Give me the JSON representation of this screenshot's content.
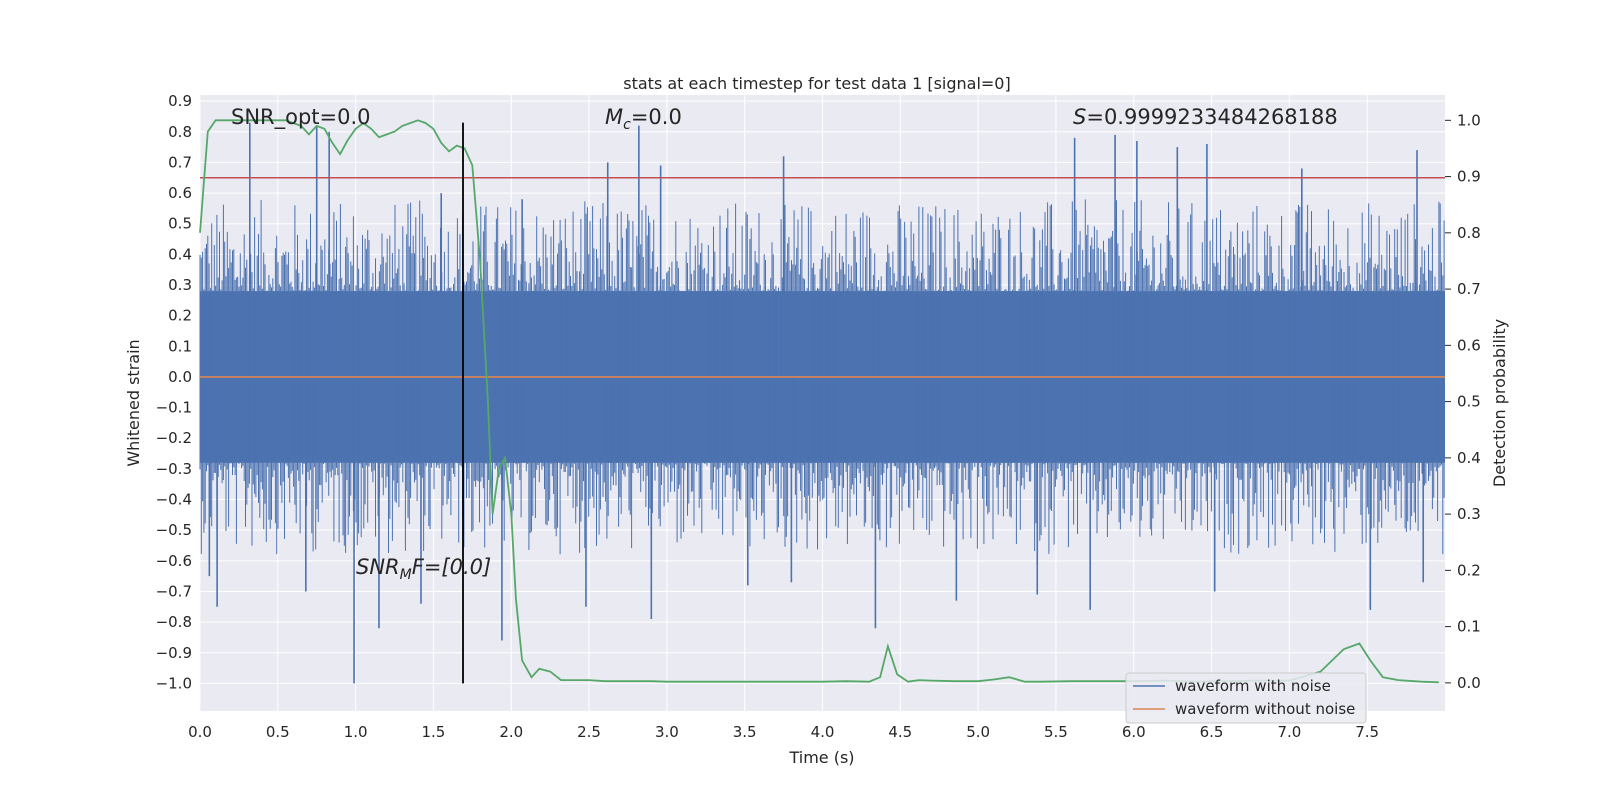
{
  "chart_data": {
    "type": "line",
    "title": "stats at each timestep for test data 1 [signal=0]",
    "xlabel": "Time (s)",
    "ylabel_left": "Whitened strain",
    "ylabel_right": "Detection probability",
    "xlim": [
      0.0,
      8.0
    ],
    "ylim_left": [
      -1.09,
      0.92
    ],
    "ylim_right": [
      -0.05,
      1.045
    ],
    "x_ticks": [
      "0.0",
      "0.5",
      "1.0",
      "1.5",
      "2.0",
      "2.5",
      "3.0",
      "3.5",
      "4.0",
      "4.5",
      "5.0",
      "5.5",
      "6.0",
      "6.5",
      "7.0",
      "7.5"
    ],
    "y_ticks_left": [
      "0.9",
      "0.8",
      "0.7",
      "0.6",
      "0.5",
      "0.4",
      "0.3",
      "0.2",
      "0.1",
      "0.0",
      "−0.1",
      "−0.2",
      "−0.3",
      "−0.4",
      "−0.5",
      "−0.6",
      "−0.7",
      "−0.8",
      "−0.9",
      "−1.0"
    ],
    "y_ticks_right": [
      "0.0",
      "0.1",
      "0.2",
      "0.3",
      "0.4",
      "0.5",
      "0.6",
      "0.7",
      "0.8",
      "0.9",
      "1.0"
    ],
    "grid": true,
    "legend_position": "lower-right",
    "colors": {
      "plot_background": "#eaeaf2",
      "grid": "#ffffff",
      "noisy_waveform": "#4c72b0",
      "clean_waveform": "#dd8452",
      "detection_probability": "#55a868",
      "threshold": "#c44e52",
      "marker": "#000000"
    },
    "annotations": {
      "snr_opt": "SNR_opt=0.0",
      "mc_symbol": "M",
      "mc_sub": "c",
      "mc_value": "=0.0",
      "s_symbol": "S",
      "s_value": "=0.9999233484268188",
      "snr_mf_symbol": "SNR",
      "snr_mf_sub": "M",
      "snr_mf_tail": "F=[0.0]"
    },
    "series": [
      {
        "name": "waveform with noise",
        "kind": "noise-dense",
        "axis": "left",
        "x_range": [
          0.0,
          8.0
        ],
        "band_typical": [
          -0.28,
          0.28
        ],
        "spikes": [
          {
            "x": 0.06,
            "y": -0.65
          },
          {
            "x": 0.11,
            "y": -0.75
          },
          {
            "x": 0.32,
            "y": 0.83
          },
          {
            "x": 0.68,
            "y": -0.7
          },
          {
            "x": 0.75,
            "y": 0.82
          },
          {
            "x": 0.83,
            "y": 0.8
          },
          {
            "x": 0.99,
            "y": -1.0
          },
          {
            "x": 1.15,
            "y": -0.82
          },
          {
            "x": 1.42,
            "y": -0.74
          },
          {
            "x": 1.55,
            "y": 0.6
          },
          {
            "x": 1.94,
            "y": -0.86
          },
          {
            "x": 2.07,
            "y": 0.58
          },
          {
            "x": 2.48,
            "y": -0.75
          },
          {
            "x": 2.62,
            "y": 0.7
          },
          {
            "x": 2.82,
            "y": 0.82
          },
          {
            "x": 2.9,
            "y": -0.79
          },
          {
            "x": 2.96,
            "y": 0.69
          },
          {
            "x": 3.52,
            "y": -0.68
          },
          {
            "x": 3.75,
            "y": 0.72
          },
          {
            "x": 3.8,
            "y": -0.67
          },
          {
            "x": 4.34,
            "y": -0.82
          },
          {
            "x": 4.86,
            "y": -0.73
          },
          {
            "x": 5.38,
            "y": -0.71
          },
          {
            "x": 5.62,
            "y": 0.78
          },
          {
            "x": 5.72,
            "y": -0.76
          },
          {
            "x": 5.88,
            "y": 0.79
          },
          {
            "x": 6.02,
            "y": 0.77
          },
          {
            "x": 6.28,
            "y": 0.75
          },
          {
            "x": 6.47,
            "y": 0.76
          },
          {
            "x": 6.52,
            "y": -0.7
          },
          {
            "x": 7.08,
            "y": 0.68
          },
          {
            "x": 7.52,
            "y": -0.76
          },
          {
            "x": 7.82,
            "y": 0.74
          },
          {
            "x": 7.86,
            "y": -0.67
          }
        ]
      },
      {
        "name": "waveform without noise",
        "axis": "left",
        "x": [
          0.0,
          8.0
        ],
        "y": [
          0.0,
          0.0
        ]
      },
      {
        "axis": "right",
        "x": [
          0.0,
          0.05,
          0.1,
          0.15,
          0.2,
          0.25,
          0.3,
          0.35,
          0.4,
          0.45,
          0.5,
          0.55,
          0.6,
          0.65,
          0.7,
          0.75,
          0.8,
          0.85,
          0.9,
          0.95,
          1.0,
          1.05,
          1.1,
          1.15,
          1.2,
          1.25,
          1.3,
          1.35,
          1.4,
          1.45,
          1.5,
          1.55,
          1.6,
          1.65,
          1.7,
          1.75,
          1.8,
          1.85,
          1.88,
          1.92,
          1.96,
          2.0,
          2.03,
          2.07,
          2.13,
          2.18,
          2.25,
          2.32,
          2.4,
          2.5,
          2.6,
          2.7,
          2.8,
          2.9,
          3.0,
          3.2,
          3.4,
          3.6,
          3.8,
          4.0,
          4.15,
          4.3,
          4.37,
          4.42,
          4.48,
          4.55,
          4.62,
          4.7,
          4.85,
          5.0,
          5.1,
          5.2,
          5.3,
          5.4,
          5.6,
          5.8,
          6.0,
          6.2,
          6.4,
          6.6,
          6.8,
          7.0,
          7.2,
          7.35,
          7.45,
          7.52,
          7.6,
          7.7,
          7.85,
          7.96
        ],
        "y": [
          0.8,
          0.98,
          1.0,
          1.0,
          1.0,
          1.0,
          1.0,
          1.0,
          1.0,
          1.0,
          1.0,
          1.0,
          0.995,
          0.99,
          0.975,
          0.99,
          0.985,
          0.96,
          0.94,
          0.965,
          0.985,
          0.995,
          0.985,
          0.97,
          0.975,
          0.98,
          0.99,
          0.995,
          1.0,
          0.995,
          0.985,
          0.96,
          0.945,
          0.955,
          0.95,
          0.92,
          0.75,
          0.5,
          0.3,
          0.38,
          0.4,
          0.3,
          0.15,
          0.04,
          0.01,
          0.025,
          0.02,
          0.005,
          0.005,
          0.005,
          0.003,
          0.003,
          0.003,
          0.003,
          0.002,
          0.002,
          0.002,
          0.002,
          0.002,
          0.002,
          0.003,
          0.002,
          0.01,
          0.065,
          0.015,
          0.002,
          0.005,
          0.004,
          0.003,
          0.003,
          0.006,
          0.01,
          0.002,
          0.002,
          0.003,
          0.003,
          0.003,
          0.004,
          0.002,
          0.003,
          0.004,
          0.004,
          0.02,
          0.06,
          0.07,
          0.04,
          0.01,
          0.005,
          0.002,
          0.001
        ]
      }
    ],
    "threshold_line": {
      "axis": "left",
      "y": 0.65
    },
    "marker_line": {
      "axis": "left",
      "x": 1.69,
      "y": [
        -1.0,
        0.83
      ]
    },
    "legend": [
      "waveform with noise",
      "waveform without noise"
    ]
  }
}
